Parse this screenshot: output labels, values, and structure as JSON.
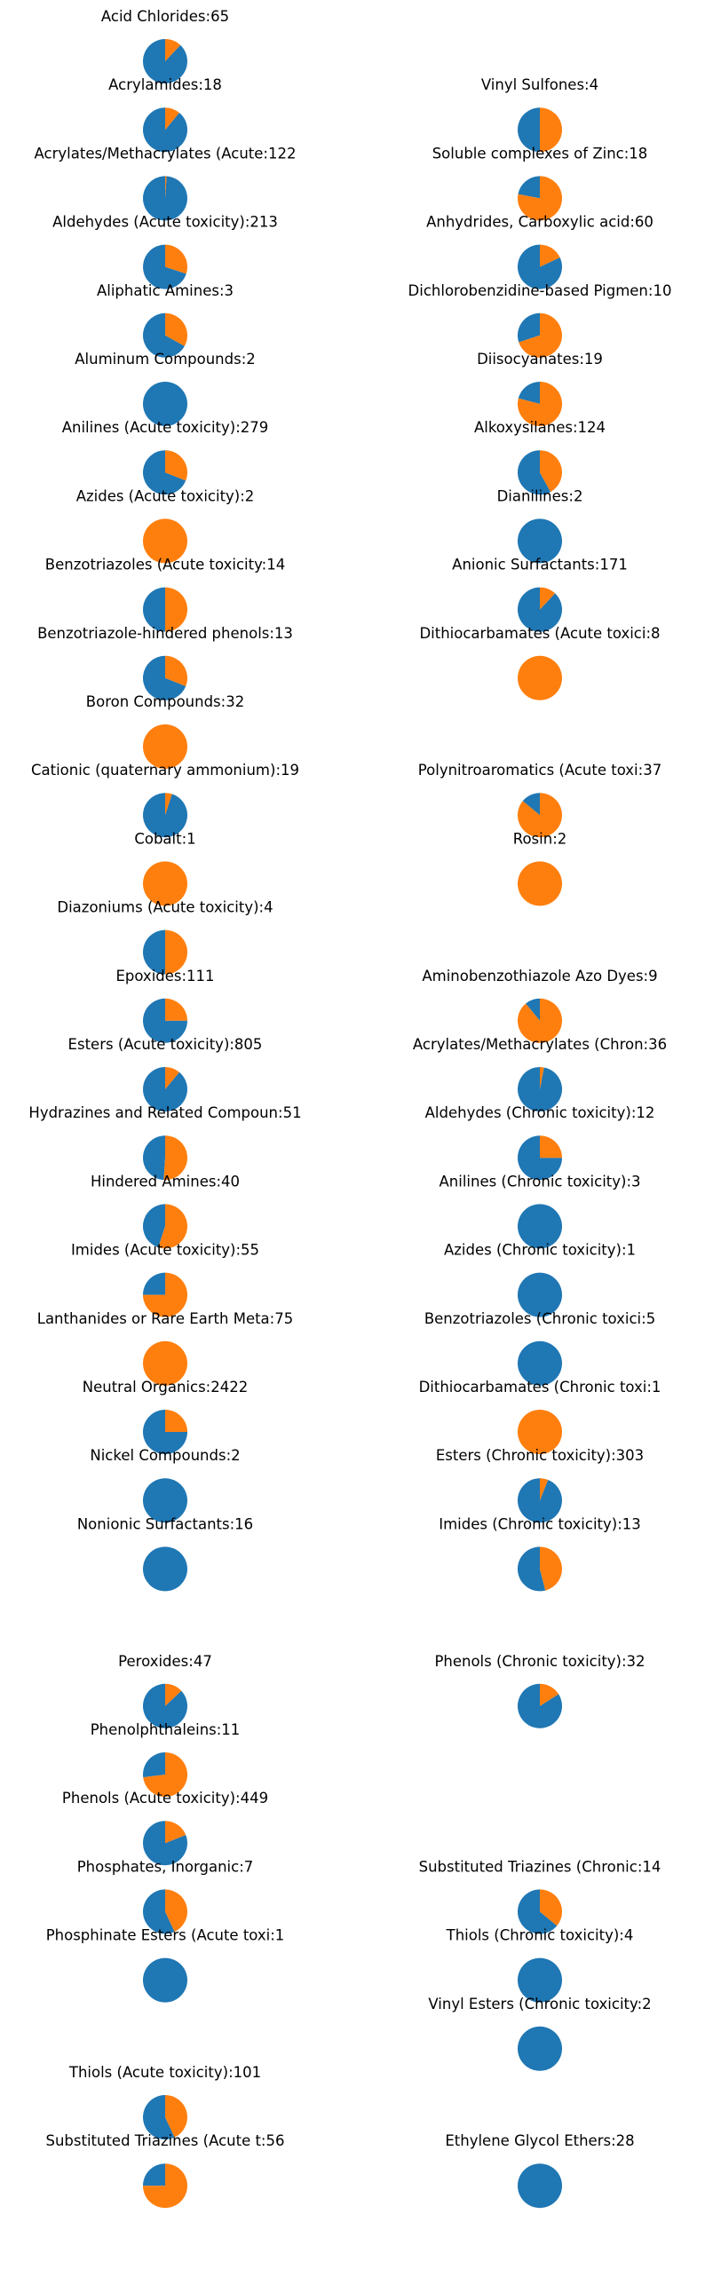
{
  "colors": {
    "blue": "#1f77b4",
    "orange": "#ff7f0e",
    "background": "#ffffff"
  },
  "chart_data": {
    "type": "pie",
    "grid": false,
    "legend": "none",
    "columns": [
      [
        {
          "title": "Acid Chlorides:65",
          "blue": 0.88,
          "orange": 0.12
        },
        {
          "title": "Acrylamides:18",
          "blue": 0.89,
          "orange": 0.11
        },
        {
          "title": "Acrylates/Methacrylates (Acute:122",
          "blue": 0.99,
          "orange": 0.01
        },
        {
          "title": "Aldehydes (Acute toxicity):213",
          "blue": 0.7,
          "orange": 0.3
        },
        {
          "title": "Aliphatic Amines:3",
          "blue": 0.67,
          "orange": 0.33
        },
        {
          "title": "Aluminum Compounds:2",
          "blue": 1.0,
          "orange": 0.0
        },
        {
          "title": "Anilines (Acute toxicity):279",
          "blue": 0.69,
          "orange": 0.31
        },
        {
          "title": "Azides (Acute toxicity):2",
          "blue": 0.0,
          "orange": 1.0
        },
        {
          "title": "Benzotriazoles (Acute toxicity:14",
          "blue": 0.5,
          "orange": 0.5
        },
        {
          "title": "Benzotriazole-hindered phenols:13",
          "blue": 0.69,
          "orange": 0.31
        },
        {
          "title": "Boron Compounds:32",
          "blue": 0.0,
          "orange": 1.0
        },
        {
          "title": "Cationic (quaternary ammonium):19",
          "blue": 0.95,
          "orange": 0.05
        },
        {
          "title": "Cobalt:1",
          "blue": 0.0,
          "orange": 1.0
        },
        {
          "title": "Diazoniums (Acute toxicity):4",
          "blue": 0.5,
          "orange": 0.5
        },
        {
          "title": "Epoxides:111",
          "blue": 0.75,
          "orange": 0.25
        },
        {
          "title": "Esters (Acute toxicity):805",
          "blue": 0.89,
          "orange": 0.11
        },
        {
          "title": "Hydrazines and Related Compoun:51",
          "blue": 0.49,
          "orange": 0.51
        },
        {
          "title": "Hindered Amines:40",
          "blue": 0.45,
          "orange": 0.55
        },
        {
          "title": "Imides (Acute toxicity):55",
          "blue": 0.25,
          "orange": 0.75
        },
        {
          "title": "Lanthanides or Rare Earth Meta:75",
          "blue": 0.0,
          "orange": 1.0
        },
        {
          "title": "Neutral Organics:2422",
          "blue": 0.75,
          "orange": 0.25
        },
        {
          "title": "Nickel Compounds:2",
          "blue": 1.0,
          "orange": 0.0
        },
        {
          "title": "Nonionic Surfactants:16",
          "blue": 1.0,
          "orange": 0.0
        },
        {
          "title": "",
          "blue": 0.0,
          "orange": 0.0
        },
        {
          "title": "Peroxides:47",
          "blue": 0.87,
          "orange": 0.13
        },
        {
          "title": "Phenolphthaleins:11",
          "blue": 0.27,
          "orange": 0.73
        },
        {
          "title": "Phenols (Acute toxicity):449",
          "blue": 0.81,
          "orange": 0.19
        },
        {
          "title": "Phosphates, Inorganic:7",
          "blue": 0.57,
          "orange": 0.43
        },
        {
          "title": "Phosphinate Esters (Acute toxi:1",
          "blue": 1.0,
          "orange": 0.0
        },
        {
          "title": "",
          "blue": 0.0,
          "orange": 0.0
        },
        {
          "title": "Thiols (Acute toxicity):101",
          "blue": 0.57,
          "orange": 0.43
        },
        {
          "title": "Substituted Triazines (Acute t:56",
          "blue": 0.25,
          "orange": 0.75
        }
      ],
      [
        {
          "title": "",
          "blue": 0.0,
          "orange": 0.0
        },
        {
          "title": "Vinyl Sulfones:4",
          "blue": 0.5,
          "orange": 0.5
        },
        {
          "title": "Soluble complexes of Zinc:18",
          "blue": 0.22,
          "orange": 0.78
        },
        {
          "title": "Anhydrides, Carboxylic acid:60",
          "blue": 0.82,
          "orange": 0.18
        },
        {
          "title": "Dichlorobenzidine-based Pigmen:10",
          "blue": 0.3,
          "orange": 0.7
        },
        {
          "title": "Diisocyanates:19",
          "blue": 0.21,
          "orange": 0.79
        },
        {
          "title": "Alkoxysilanes:124",
          "blue": 0.58,
          "orange": 0.42
        },
        {
          "title": "Dianilines:2",
          "blue": 1.0,
          "orange": 0.0
        },
        {
          "title": "Anionic Surfactants:171",
          "blue": 0.88,
          "orange": 0.12
        },
        {
          "title": "Dithiocarbamates (Acute toxici:8",
          "blue": 0.0,
          "orange": 1.0
        },
        {
          "title": "",
          "blue": 0.0,
          "orange": 0.0
        },
        {
          "title": "Polynitroaromatics (Acute toxi:37",
          "blue": 0.14,
          "orange": 0.86
        },
        {
          "title": "Rosin:2",
          "blue": 0.0,
          "orange": 1.0
        },
        {
          "title": "",
          "blue": 0.0,
          "orange": 0.0
        },
        {
          "title": "Aminobenzothiazole Azo Dyes:9",
          "blue": 0.11,
          "orange": 0.89
        },
        {
          "title": "Acrylates/Methacrylates (Chron:36",
          "blue": 0.97,
          "orange": 0.03
        },
        {
          "title": "Aldehydes (Chronic toxicity):12",
          "blue": 0.75,
          "orange": 0.25
        },
        {
          "title": "Anilines (Chronic toxicity):3",
          "blue": 1.0,
          "orange": 0.0
        },
        {
          "title": "Azides (Chronic toxicity):1",
          "blue": 1.0,
          "orange": 0.0
        },
        {
          "title": "Benzotriazoles (Chronic toxici:5",
          "blue": 1.0,
          "orange": 0.0
        },
        {
          "title": "Dithiocarbamates (Chronic toxi:1",
          "blue": 0.0,
          "orange": 1.0
        },
        {
          "title": "Esters (Chronic toxicity):303",
          "blue": 0.94,
          "orange": 0.06
        },
        {
          "title": "Imides (Chronic toxicity):13",
          "blue": 0.54,
          "orange": 0.46
        },
        {
          "title": "",
          "blue": 0.0,
          "orange": 0.0
        },
        {
          "title": "Phenols (Chronic toxicity):32",
          "blue": 0.84,
          "orange": 0.16
        },
        {
          "title": "",
          "blue": 0.0,
          "orange": 0.0
        },
        {
          "title": "",
          "blue": 0.0,
          "orange": 0.0
        },
        {
          "title": "Substituted Triazines (Chronic:14",
          "blue": 0.64,
          "orange": 0.36
        },
        {
          "title": "Thiols (Chronic toxicity):4",
          "blue": 1.0,
          "orange": 0.0
        },
        {
          "title": "Vinyl Esters (Chronic toxicity:2",
          "blue": 1.0,
          "orange": 0.0
        },
        {
          "title": "",
          "blue": 0.0,
          "orange": 0.0
        },
        {
          "title": "Ethylene Glycol Ethers:28",
          "blue": 1.0,
          "orange": 0.0
        }
      ]
    ]
  }
}
